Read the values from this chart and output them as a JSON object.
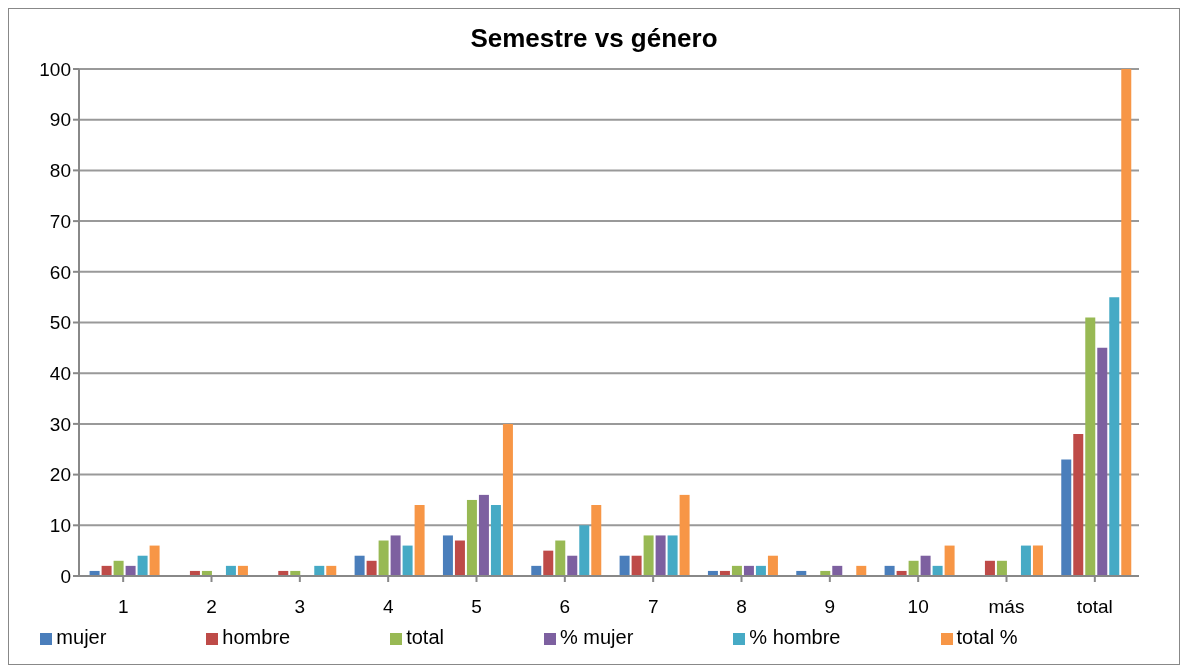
{
  "chart_data": {
    "type": "bar",
    "title": "Semestre vs género",
    "categories": [
      "1",
      "2",
      "3",
      "4",
      "5",
      "6",
      "7",
      "8",
      "9",
      "10",
      "más",
      "total"
    ],
    "series": [
      {
        "name": "mujer",
        "color": "#4a7ebb",
        "values": [
          1,
          0,
          0,
          4,
          8,
          2,
          4,
          1,
          1,
          2,
          0,
          23
        ]
      },
      {
        "name": "hombre",
        "color": "#be4b48",
        "values": [
          2,
          1,
          1,
          3,
          7,
          5,
          4,
          1,
          0,
          1,
          3,
          28
        ]
      },
      {
        "name": "total",
        "color": "#98b954",
        "values": [
          3,
          1,
          1,
          7,
          15,
          7,
          8,
          2,
          1,
          3,
          3,
          51
        ]
      },
      {
        "name": "% mujer",
        "color": "#7d60a0",
        "values": [
          2,
          0,
          0,
          8,
          16,
          4,
          8,
          2,
          2,
          4,
          0,
          45
        ]
      },
      {
        "name": "% hombre",
        "color": "#46aac5",
        "values": [
          4,
          2,
          2,
          6,
          14,
          10,
          8,
          2,
          0,
          2,
          6,
          55
        ]
      },
      {
        "name": "total %",
        "color": "#f79646",
        "values": [
          6,
          2,
          2,
          14,
          30,
          14,
          16,
          4,
          2,
          6,
          6,
          100
        ]
      }
    ],
    "ylim": [
      0,
      100
    ],
    "yticks": [
      0,
      10,
      20,
      30,
      40,
      50,
      60,
      70,
      80,
      90,
      100
    ],
    "grid": "y",
    "legend": "bottom"
  }
}
